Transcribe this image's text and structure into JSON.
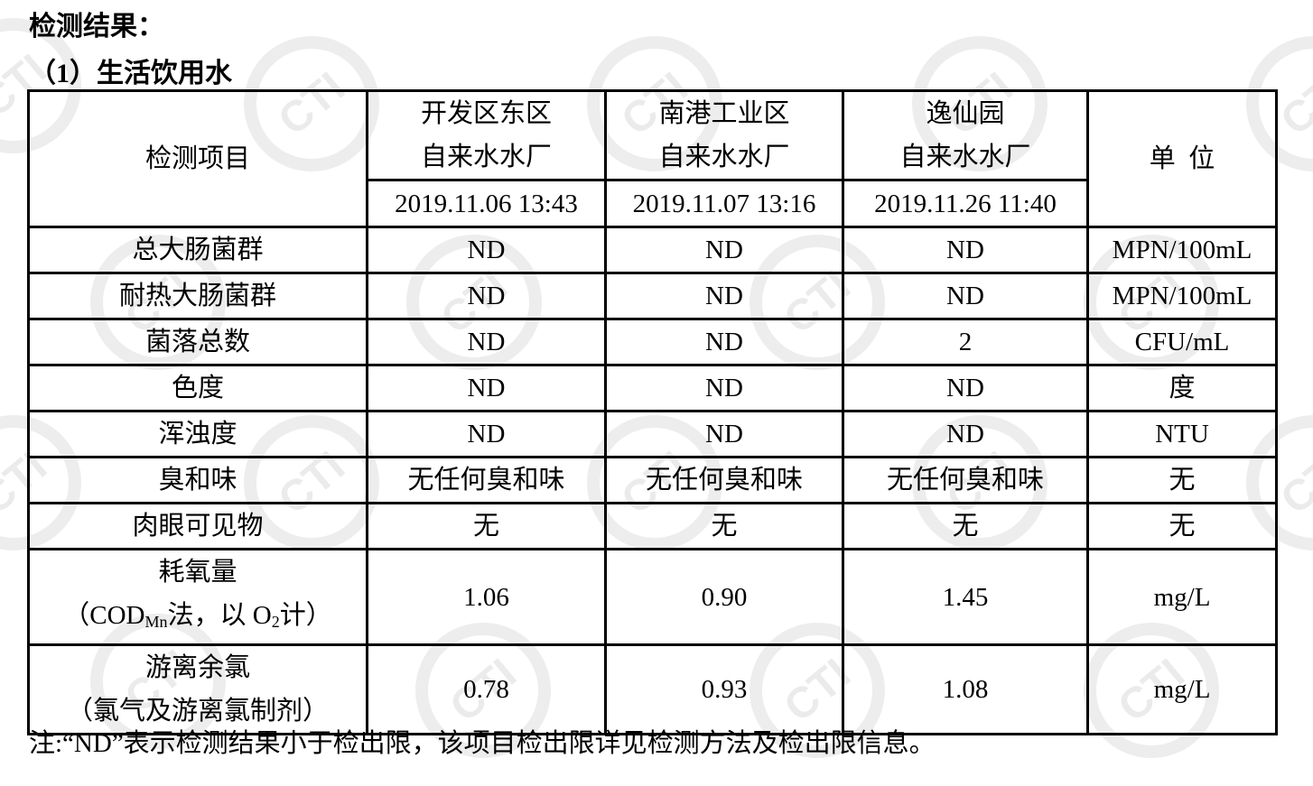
{
  "heading": "检测结果：",
  "subheading": "（1）生活饮用水",
  "watermark": "CTI",
  "table": {
    "item_header": "检测项目",
    "unit_header": "单  位",
    "sites": [
      {
        "name_line1": "开发区东区",
        "name_line2": "自来水水厂",
        "datetime": "2019.11.06 13:43"
      },
      {
        "name_line1": "南港工业区",
        "name_line2": "自来水水厂",
        "datetime": "2019.11.07 13:16"
      },
      {
        "name_line1": "逸仙园",
        "name_line2": "自来水水厂",
        "datetime": "2019.11.26 11:40"
      }
    ],
    "rows": [
      {
        "item": "总大肠菌群",
        "values": [
          "ND",
          "ND",
          "ND"
        ],
        "unit": "MPN/100mL"
      },
      {
        "item": "耐热大肠菌群",
        "values": [
          "ND",
          "ND",
          "ND"
        ],
        "unit": "MPN/100mL"
      },
      {
        "item": "菌落总数",
        "values": [
          "ND",
          "ND",
          "2"
        ],
        "unit": "CFU/mL"
      },
      {
        "item": "色度",
        "values": [
          "ND",
          "ND",
          "ND"
        ],
        "unit": "度"
      },
      {
        "item": "浑浊度",
        "values": [
          "ND",
          "ND",
          "ND"
        ],
        "unit": "NTU"
      },
      {
        "item": "臭和味",
        "values": [
          "无任何臭和味",
          "无任何臭和味",
          "无任何臭和味"
        ],
        "unit": "无"
      },
      {
        "item": "肉眼可见物",
        "values": [
          "无",
          "无",
          "无"
        ],
        "unit": "无"
      }
    ],
    "cod_row": {
      "item_line1": "耗氧量",
      "item_pre": "（COD",
      "item_sub": "Mn",
      "item_mid": "法，以 O",
      "item_sub2": "2",
      "item_post": "计）",
      "values": [
        "1.06",
        "0.90",
        "1.45"
      ],
      "unit": "mg/L"
    },
    "chlorine_row": {
      "item_line1": "游离余氯",
      "item_line2": "（氯气及游离氯制剂）",
      "values": [
        "0.78",
        "0.93",
        "1.08"
      ],
      "unit": "mg/L"
    }
  },
  "note": "注:“ND”表示检测结果小于检出限，该项目检出限详见检测方法及检出限信息。"
}
